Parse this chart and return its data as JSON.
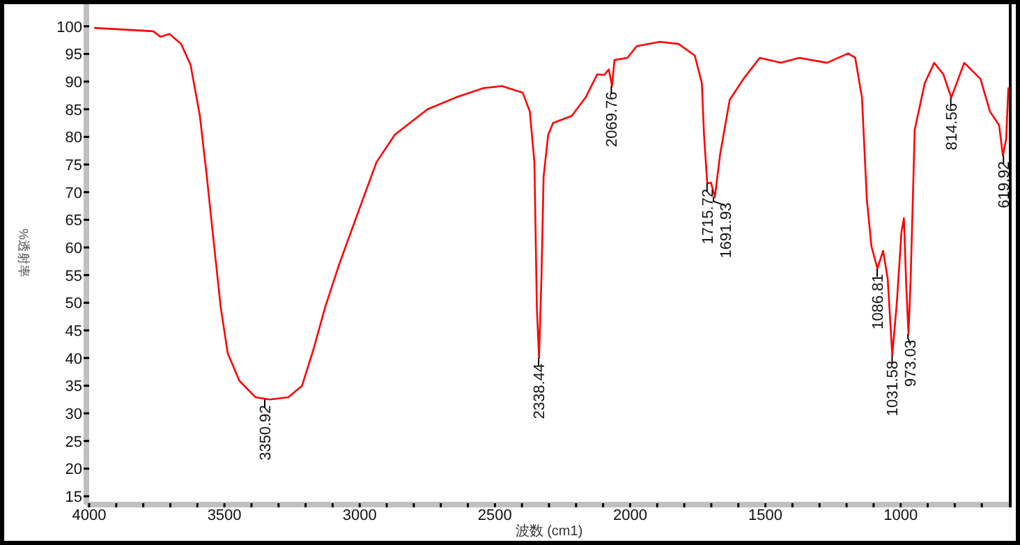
{
  "chart_data": {
    "type": "line",
    "xlabel": "波数 (cm1)",
    "ylabel": "%透射率",
    "xlim": [
      4000,
      600
    ],
    "ylim": [
      14,
      104
    ],
    "xticks": [
      4000,
      {
        "value": 3900,
        "label": null
      },
      {
        "value": 3800,
        "label": null
      },
      {
        "value": 3700,
        "label": null
      },
      {
        "value": 3600,
        "label": null
      },
      3500,
      {
        "value": 3400,
        "label": null
      },
      {
        "value": 3300,
        "label": null
      },
      {
        "value": 3200,
        "label": null
      },
      {
        "value": 3100,
        "label": null
      },
      3000,
      {
        "value": 2900,
        "label": null
      },
      {
        "value": 2800,
        "label": null
      },
      {
        "value": 2700,
        "label": null
      },
      {
        "value": 2600,
        "label": null
      },
      2500,
      {
        "value": 2400,
        "label": null
      },
      {
        "value": 2300,
        "label": null
      },
      {
        "value": 2200,
        "label": null
      },
      {
        "value": 2100,
        "label": null
      },
      2000,
      {
        "value": 1900,
        "label": null
      },
      {
        "value": 1800,
        "label": null
      },
      {
        "value": 1700,
        "label": null
      },
      {
        "value": 1600,
        "label": null
      },
      1500,
      {
        "value": 1400,
        "label": null
      },
      {
        "value": 1300,
        "label": null
      },
      {
        "value": 1200,
        "label": null
      },
      {
        "value": 1100,
        "label": null
      },
      1000,
      {
        "value": 900,
        "label": null
      },
      {
        "value": 800,
        "label": null
      },
      {
        "value": 700,
        "label": null
      }
    ],
    "yticks": [
      15,
      20,
      25,
      30,
      35,
      40,
      45,
      50,
      55,
      60,
      65,
      70,
      75,
      80,
      85,
      90,
      95,
      100
    ],
    "grid": false,
    "marker": "none",
    "line_style": "solid",
    "series": [
      {
        "color": "#ff0000",
        "x": [
          3979,
          3763,
          3737,
          3703,
          3660,
          3625,
          3591,
          3565,
          3540,
          3514,
          3488,
          3445,
          3385,
          3334,
          3264,
          3213,
          3170,
          3127,
          3076,
          3007,
          2938,
          2870,
          2749,
          2646,
          2543,
          2474,
          2397,
          2371,
          2354,
          2345,
          2337,
          2328,
          2320,
          2303,
          2285,
          2216,
          2165,
          2122,
          2096,
          2079,
          2067,
          2058,
          2010,
          1976,
          1890,
          1821,
          1761,
          1735,
          1727,
          1715,
          1701,
          1687,
          1667,
          1632,
          1581,
          1521,
          1443,
          1375,
          1272,
          1194,
          1168,
          1143,
          1125,
          1108,
          1086,
          1065,
          1048,
          1031,
          1014,
          997,
          988,
          979,
          971,
          963,
          948,
          911,
          876,
          842,
          813,
          765,
          705,
          670,
          636,
          622,
          610,
          602
        ],
        "values": [
          99.7,
          99.1,
          98.1,
          98.6,
          96.8,
          93.0,
          83.9,
          72.8,
          61.2,
          49.3,
          40.9,
          35.9,
          32.9,
          32.5,
          32.9,
          35.0,
          41.7,
          49.3,
          56.9,
          66.2,
          75.4,
          80.4,
          85.0,
          87.1,
          88.8,
          89.2,
          88.0,
          84.6,
          75.4,
          49.3,
          40.0,
          54.4,
          72.8,
          80.4,
          82.5,
          83.8,
          87.1,
          91.3,
          91.2,
          92.2,
          89.2,
          93.9,
          94.3,
          96.4,
          97.2,
          96.8,
          94.7,
          89.7,
          80.4,
          71.6,
          71.7,
          69.1,
          77.0,
          86.7,
          90.5,
          94.3,
          93.4,
          94.3,
          93.4,
          95.1,
          94.3,
          87.1,
          68.7,
          60.2,
          56.2,
          59.4,
          54.4,
          40.5,
          50.1,
          62.8,
          65.3,
          52.7,
          44.3,
          54.4,
          81.3,
          89.7,
          93.4,
          91.3,
          87.1,
          93.4,
          90.5,
          84.6,
          82.1,
          76.6,
          79.6,
          88.8
        ]
      }
    ],
    "annotations": [
      {
        "text": "3350.92",
        "x": 3350.92,
        "y": 32.5
      },
      {
        "text": "2338.44",
        "x": 2338.44,
        "y": 40.0
      },
      {
        "text": "2069.76",
        "x": 2069.76,
        "y": 89.2
      },
      {
        "text": "1715.72",
        "x": 1715.72,
        "y": 71.6
      },
      {
        "text": "1691.93",
        "x": 1691.93,
        "y": 69.1
      },
      {
        "text": "1086.81",
        "x": 1086.81,
        "y": 56.2
      },
      {
        "text": "1031.58",
        "x": 1031.58,
        "y": 40.5
      },
      {
        "text": "973.03",
        "x": 973.03,
        "y": 44.3
      },
      {
        "text": "814.56",
        "x": 814.56,
        "y": 87.1
      },
      {
        "text": "619.92",
        "x": 619.92,
        "y": 76.6
      }
    ]
  }
}
